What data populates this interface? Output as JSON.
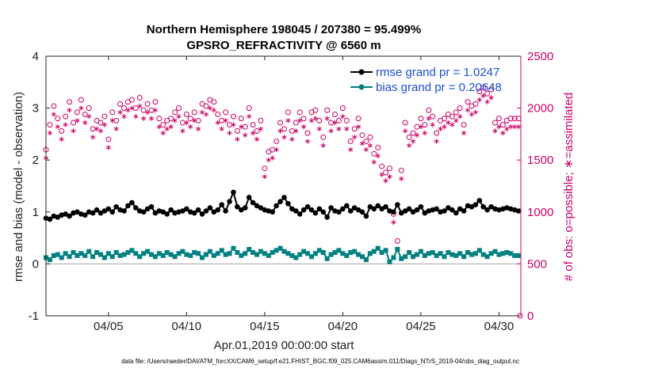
{
  "chart_data": {
    "type": "line",
    "title_line1": "Northern Hemisphere 198045 / 207380 = 95.499%",
    "title_line2": "GPSRO_REFRACTIVITY @ 6560 m",
    "xlabel": "Apr.01,2019 00:00:00 start",
    "ylabel": "rmse and bias (model - observation)",
    "ylabel_right": "# of obs: o=possible; ∗=assimilated",
    "xlim": [
      1,
      31.4
    ],
    "ylim": [
      -1,
      4
    ],
    "ylim_right": [
      0,
      2500
    ],
    "x_ticks": [
      5,
      10,
      15,
      20,
      25,
      30
    ],
    "x_tick_labels": [
      "04/05",
      "04/10",
      "04/15",
      "04/20",
      "04/25",
      "04/30"
    ],
    "y_ticks": [
      -1,
      0,
      1,
      2,
      3,
      4
    ],
    "y_tick_labels": [
      "-1",
      "0",
      "1",
      "2",
      "3",
      "4"
    ],
    "y2_ticks": [
      0,
      500,
      1000,
      1500,
      2000,
      2500
    ],
    "y2_tick_labels": [
      "0",
      "500",
      "1000",
      "1500",
      "2000",
      "2500"
    ],
    "legend": {
      "rmse": "rmse grand pr = 1.0247",
      "bias": "bias grand pr = 0.20648"
    },
    "colors": {
      "rmse": "#000000",
      "bias": "#008080",
      "obs": "#cc0066",
      "axis_right": "#cc0066",
      "legend_text": "#1a4fd6",
      "zero_line": "#aaaaaa"
    },
    "series": [
      {
        "name": "rmse",
        "x": [
          1.0,
          1.25,
          1.5,
          1.75,
          2.0,
          2.25,
          2.5,
          2.75,
          3.0,
          3.25,
          3.5,
          3.75,
          4.0,
          4.25,
          4.5,
          4.75,
          5.0,
          5.25,
          5.5,
          5.75,
          6.0,
          6.25,
          6.5,
          6.75,
          7.0,
          7.25,
          7.5,
          7.75,
          8.0,
          8.25,
          8.5,
          8.75,
          9.0,
          9.25,
          9.5,
          9.75,
          10.0,
          10.25,
          10.5,
          10.75,
          11.0,
          11.25,
          11.5,
          11.75,
          12.0,
          12.25,
          12.5,
          12.75,
          13.0,
          13.25,
          13.5,
          13.75,
          14.0,
          14.25,
          14.5,
          14.75,
          15.0,
          15.25,
          15.5,
          15.75,
          16.0,
          16.25,
          16.5,
          16.75,
          17.0,
          17.25,
          17.5,
          17.75,
          18.0,
          18.25,
          18.5,
          18.75,
          19.0,
          19.25,
          19.5,
          19.75,
          20.0,
          20.25,
          20.5,
          20.75,
          21.0,
          21.25,
          21.5,
          21.75,
          22.0,
          22.25,
          22.5,
          22.75,
          23.0,
          23.25,
          23.5,
          23.75,
          24.0,
          24.25,
          24.5,
          24.75,
          25.0,
          25.25,
          25.5,
          25.75,
          26.0,
          26.25,
          26.5,
          26.75,
          27.0,
          27.25,
          27.5,
          27.75,
          28.0,
          28.25,
          28.5,
          28.75,
          29.0,
          29.25,
          29.5,
          29.75,
          30.0,
          30.25,
          30.5,
          30.75,
          31.0,
          31.25
        ],
        "values": [
          0.88,
          0.86,
          0.92,
          0.9,
          0.94,
          0.96,
          0.92,
          0.98,
          1.0,
          0.96,
          0.94,
          1.0,
          0.98,
          1.04,
          0.98,
          1.02,
          1.06,
          1.0,
          1.1,
          1.04,
          1.02,
          1.12,
          1.18,
          1.08,
          1.02,
          1.0,
          1.06,
          1.1,
          0.98,
          1.02,
          1.0,
          0.96,
          1.04,
          0.98,
          1.0,
          1.02,
          1.06,
          1.0,
          0.98,
          1.04,
          0.96,
          1.02,
          1.08,
          1.0,
          1.04,
          1.14,
          1.02,
          1.2,
          1.38,
          1.1,
          1.04,
          1.08,
          1.28,
          1.18,
          1.12,
          1.08,
          1.04,
          1.02,
          1.0,
          1.12,
          1.2,
          1.28,
          1.16,
          1.06,
          1.02,
          0.96,
          1.04,
          1.1,
          1.04,
          0.98,
          1.06,
          1.0,
          0.9,
          1.08,
          1.02,
          1.0,
          1.06,
          1.12,
          1.02,
          1.08,
          1.04,
          1.0,
          0.92,
          1.1,
          1.06,
          1.12,
          1.06,
          1.1,
          1.02,
          1.0,
          1.14,
          0.98,
          1.02,
          1.06,
          1.0,
          1.04,
          1.1,
          0.98,
          1.02,
          1.04,
          1.06,
          1.0,
          1.02,
          1.08,
          1.04,
          0.98,
          1.06,
          1.02,
          1.12,
          1.1,
          1.14,
          1.22,
          1.1,
          1.04,
          1.1,
          1.06,
          1.04,
          1.06,
          1.08,
          1.06,
          1.04,
          1.02
        ]
      },
      {
        "name": "bias",
        "x": [
          1.0,
          1.25,
          1.5,
          1.75,
          2.0,
          2.25,
          2.5,
          2.75,
          3.0,
          3.25,
          3.5,
          3.75,
          4.0,
          4.25,
          4.5,
          4.75,
          5.0,
          5.25,
          5.5,
          5.75,
          6.0,
          6.25,
          6.5,
          6.75,
          7.0,
          7.25,
          7.5,
          7.75,
          8.0,
          8.25,
          8.5,
          8.75,
          9.0,
          9.25,
          9.5,
          9.75,
          10.0,
          10.25,
          10.5,
          10.75,
          11.0,
          11.25,
          11.5,
          11.75,
          12.0,
          12.25,
          12.5,
          12.75,
          13.0,
          13.25,
          13.5,
          13.75,
          14.0,
          14.25,
          14.5,
          14.75,
          15.0,
          15.25,
          15.5,
          15.75,
          16.0,
          16.25,
          16.5,
          16.75,
          17.0,
          17.25,
          17.5,
          17.75,
          18.0,
          18.25,
          18.5,
          18.75,
          19.0,
          19.25,
          19.5,
          19.75,
          20.0,
          20.25,
          20.5,
          20.75,
          21.0,
          21.25,
          21.5,
          21.75,
          22.0,
          22.25,
          22.5,
          22.75,
          23.0,
          23.25,
          23.5,
          23.75,
          24.0,
          24.25,
          24.5,
          24.75,
          25.0,
          25.25,
          25.5,
          25.75,
          26.0,
          26.25,
          26.5,
          26.75,
          27.0,
          27.25,
          27.5,
          27.75,
          28.0,
          28.25,
          28.5,
          28.75,
          29.0,
          29.25,
          29.5,
          29.75,
          30.0,
          30.25,
          30.5,
          30.75,
          31.0,
          31.25
        ],
        "values": [
          0.12,
          0.08,
          0.16,
          0.18,
          0.12,
          0.2,
          0.14,
          0.22,
          0.16,
          0.2,
          0.16,
          0.24,
          0.14,
          0.22,
          0.18,
          0.12,
          0.2,
          0.14,
          0.22,
          0.16,
          0.18,
          0.22,
          0.26,
          0.2,
          0.14,
          0.2,
          0.24,
          0.18,
          0.14,
          0.2,
          0.16,
          0.22,
          0.18,
          0.14,
          0.2,
          0.24,
          0.18,
          0.16,
          0.22,
          0.2,
          0.12,
          0.18,
          0.24,
          0.16,
          0.2,
          0.26,
          0.18,
          0.2,
          0.3,
          0.22,
          0.16,
          0.2,
          0.28,
          0.22,
          0.18,
          0.24,
          0.2,
          0.16,
          0.22,
          0.26,
          0.3,
          0.24,
          0.2,
          0.16,
          0.12,
          0.18,
          0.24,
          0.2,
          0.14,
          0.2,
          0.26,
          0.22,
          0.1,
          0.18,
          0.22,
          0.26,
          0.2,
          0.16,
          0.22,
          0.24,
          0.18,
          0.14,
          0.08,
          0.2,
          0.24,
          0.3,
          0.22,
          0.26,
          0.04,
          0.12,
          0.28,
          0.1,
          0.14,
          0.22,
          0.14,
          0.18,
          0.24,
          0.16,
          0.2,
          0.22,
          0.16,
          0.2,
          0.14,
          0.22,
          0.18,
          0.16,
          0.2,
          0.14,
          0.22,
          0.18,
          0.2,
          0.26,
          0.18,
          0.14,
          0.2,
          0.24,
          0.18,
          0.2,
          0.22,
          0.2,
          0.16,
          0.16
        ]
      },
      {
        "name": "obs_possible",
        "axis": "right",
        "x": [
          1.0,
          1.25,
          1.5,
          1.75,
          2.0,
          2.25,
          2.5,
          2.75,
          3.0,
          3.25,
          3.5,
          3.75,
          4.0,
          4.25,
          4.5,
          4.75,
          5.0,
          5.25,
          5.5,
          5.75,
          6.0,
          6.25,
          6.5,
          6.75,
          7.0,
          7.25,
          7.5,
          7.75,
          8.0,
          8.25,
          8.5,
          8.75,
          9.0,
          9.25,
          9.5,
          9.75,
          10.0,
          10.25,
          10.5,
          10.75,
          11.0,
          11.25,
          11.5,
          11.75,
          12.0,
          12.25,
          12.5,
          12.75,
          13.0,
          13.25,
          13.5,
          13.75,
          14.0,
          14.25,
          14.5,
          14.75,
          15.0,
          15.25,
          15.5,
          15.75,
          16.0,
          16.25,
          16.5,
          16.75,
          17.0,
          17.25,
          17.5,
          17.75,
          18.0,
          18.25,
          18.5,
          18.75,
          19.0,
          19.25,
          19.5,
          19.75,
          20.0,
          20.25,
          20.5,
          20.75,
          21.0,
          21.25,
          21.5,
          21.75,
          22.0,
          22.25,
          22.5,
          22.75,
          23.0,
          23.25,
          23.5,
          23.75,
          24.0,
          24.25,
          24.5,
          24.75,
          25.0,
          25.25,
          25.5,
          25.75,
          26.0,
          26.25,
          26.5,
          26.75,
          27.0,
          27.25,
          27.5,
          27.75,
          28.0,
          28.25,
          28.5,
          28.75,
          29.0,
          29.25,
          29.5,
          29.75,
          30.0,
          30.25,
          30.5,
          30.75,
          31.0,
          31.25
        ],
        "values": [
          1600,
          1840,
          2020,
          1900,
          1780,
          1920,
          2060,
          1860,
          1960,
          2080,
          1940,
          2000,
          1800,
          1880,
          1860,
          1920,
          1700,
          1960,
          1880,
          2040,
          2000,
          2060,
          2080,
          2000,
          2100,
          1980,
          2040,
          1980,
          2060,
          1900,
          1840,
          1880,
          1900,
          1960,
          2000,
          1860,
          1940,
          1900,
          1960,
          1880,
          2040,
          2020,
          2080,
          2060,
          1940,
          1880,
          1960,
          1840,
          1920,
          1780,
          1900,
          1820,
          2000,
          1840,
          1780,
          1880,
          1420,
          1580,
          1600,
          1680,
          1860,
          1800,
          1960,
          1780,
          1860,
          1960,
          1900,
          1760,
          1960,
          1980,
          1880,
          1720,
          1980,
          1860,
          1940,
          1880,
          2000,
          1880,
          1680,
          1800,
          1900,
          1740,
          1680,
          1720,
          1560,
          1620,
          1440,
          1380,
          1420,
          980,
          720,
          1400,
          1860,
          1720,
          1760,
          1820,
          1900,
          1840,
          1980,
          1920,
          1760,
          1880,
          1900,
          1940,
          1920,
          1960,
          2000,
          1840,
          2060,
          2020,
          2040,
          2160,
          2200,
          2140,
          2180,
          1860,
          1900,
          1840,
          1880,
          1900,
          1900,
          1900
        ]
      },
      {
        "name": "obs_assimilated",
        "axis": "right",
        "x": [
          1.0,
          1.25,
          1.5,
          1.75,
          2.0,
          2.25,
          2.5,
          2.75,
          3.0,
          3.25,
          3.5,
          3.75,
          4.0,
          4.25,
          4.5,
          4.75,
          5.0,
          5.25,
          5.5,
          5.75,
          6.0,
          6.25,
          6.5,
          6.75,
          7.0,
          7.25,
          7.5,
          7.75,
          8.0,
          8.25,
          8.5,
          8.75,
          9.0,
          9.25,
          9.5,
          9.75,
          10.0,
          10.25,
          10.5,
          10.75,
          11.0,
          11.25,
          11.5,
          11.75,
          12.0,
          12.25,
          12.5,
          12.75,
          13.0,
          13.25,
          13.5,
          13.75,
          14.0,
          14.25,
          14.5,
          14.75,
          15.0,
          15.25,
          15.5,
          15.75,
          16.0,
          16.25,
          16.5,
          16.75,
          17.0,
          17.25,
          17.5,
          17.75,
          18.0,
          18.25,
          18.5,
          18.75,
          19.0,
          19.25,
          19.5,
          19.75,
          20.0,
          20.25,
          20.5,
          20.75,
          21.0,
          21.25,
          21.5,
          21.75,
          22.0,
          22.25,
          22.5,
          22.75,
          23.0,
          23.25,
          23.5,
          23.75,
          24.0,
          24.25,
          24.5,
          24.75,
          25.0,
          25.25,
          25.5,
          25.75,
          26.0,
          26.25,
          26.5,
          26.75,
          27.0,
          27.25,
          27.5,
          27.75,
          28.0,
          28.25,
          28.5,
          28.75,
          29.0,
          29.25,
          29.5,
          29.75,
          30.0,
          30.25,
          30.5,
          30.75,
          31.0,
          31.25
        ],
        "values": [
          1520,
          1760,
          1940,
          1820,
          1700,
          1840,
          1980,
          1780,
          1880,
          2000,
          1860,
          1920,
          1720,
          1800,
          1780,
          1840,
          1620,
          1880,
          1800,
          1960,
          1920,
          1980,
          2000,
          1920,
          2020,
          1900,
          1960,
          1900,
          1980,
          1820,
          1760,
          1800,
          1820,
          1880,
          1920,
          1780,
          1860,
          1820,
          1880,
          1800,
          1960,
          1940,
          2000,
          1980,
          1860,
          1800,
          1880,
          1760,
          1840,
          1700,
          1820,
          1740,
          1920,
          1760,
          1700,
          1800,
          1340,
          1500,
          1520,
          1600,
          1780,
          1720,
          1880,
          1700,
          1780,
          1880,
          1820,
          1680,
          1880,
          1900,
          1800,
          1640,
          1900,
          1780,
          1860,
          1800,
          1920,
          1800,
          1600,
          1720,
          1820,
          1660,
          1600,
          1640,
          1480,
          1540,
          1360,
          1300,
          1340,
          900,
          640,
          1320,
          1780,
          1640,
          1680,
          1740,
          1820,
          1760,
          1900,
          1840,
          1680,
          1800,
          1820,
          1860,
          1840,
          1880,
          1920,
          1760,
          1980,
          1940,
          1960,
          2080,
          2120,
          2060,
          2100,
          1780,
          1820,
          1760,
          1800,
          1820,
          1820,
          1820
        ]
      }
    ],
    "footer": "data file: /Users/raeder/DAI/ATM_forcXX/CAM6_setup/f.e21.FHIST_BGC.f09_025.CAM6assim.011/Diags_NTrS_2019-04/obs_diag_output.nc"
  }
}
